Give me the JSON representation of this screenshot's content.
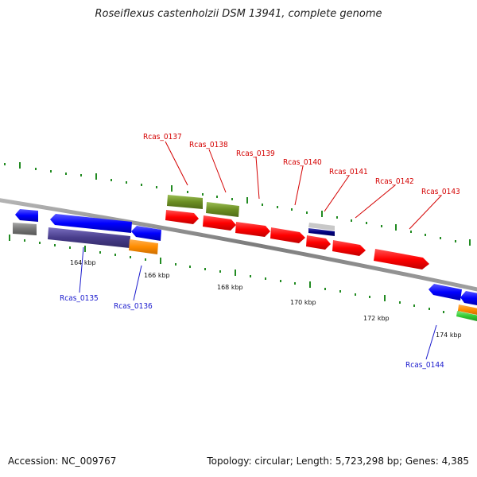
{
  "title": "Roseiflexus castenholzii DSM 13941, complete genome",
  "accession": "Accession: NC_009767",
  "topology": "Topology: circular; Length: 5,723,298 bp; Genes: 4,385",
  "ticks": [
    "164 kbp",
    "166 kbp",
    "168 kbp",
    "170 kbp",
    "172 kbp",
    "174 kbp"
  ],
  "genes_forward": [
    "Rcas_0137",
    "Rcas_0138",
    "Rcas_0139",
    "Rcas_0140",
    "Rcas_0141",
    "Rcas_0142",
    "Rcas_0143"
  ],
  "genes_reverse": [
    "Rcas_0135",
    "Rcas_0136",
    "Rcas_0144"
  ],
  "colors": {
    "forward_label": "#d40000",
    "reverse_label": "#1a1acd",
    "backbone": "#8a8a8a",
    "cds_forward": "#ff0000",
    "cds_reverse": "#0000ff",
    "olive": "#6b8e23",
    "slate": "#483d8b",
    "orange": "#ff8c00",
    "green": "#33cc33",
    "gray": "#777777",
    "navy": "#000080",
    "tick": "#228b22"
  }
}
